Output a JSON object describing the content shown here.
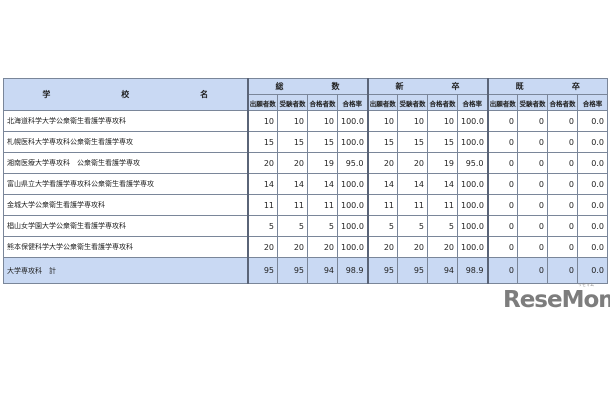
{
  "header": {
    "name_chars": [
      "学",
      "校",
      "名"
    ],
    "groups": [
      {
        "chars": [
          "総",
          "数"
        ]
      },
      {
        "chars": [
          "新",
          "卒"
        ]
      },
      {
        "chars": [
          "既",
          "卒"
        ]
      }
    ],
    "subcols": [
      "出願者数",
      "受験者数",
      "合格者数",
      "合格率"
    ]
  },
  "rows": [
    {
      "name": "北海道科学大学公衆衛生看護学専攻科",
      "v": [
        "10",
        "10",
        "10",
        "100.0",
        "10",
        "10",
        "10",
        "100.0",
        "0",
        "0",
        "0",
        "0.0"
      ]
    },
    {
      "name": "札幌医科大学専攻科公衆衛生看護学専攻",
      "v": [
        "15",
        "15",
        "15",
        "100.0",
        "15",
        "15",
        "15",
        "100.0",
        "0",
        "0",
        "0",
        "0.0"
      ]
    },
    {
      "name": "湘南医療大学専攻科　公衆衛生看護学専攻",
      "v": [
        "20",
        "20",
        "19",
        "95.0",
        "20",
        "20",
        "19",
        "95.0",
        "0",
        "0",
        "0",
        "0.0"
      ]
    },
    {
      "name": "富山県立大学看護学専攻科公衆衛生看護学専攻",
      "v": [
        "14",
        "14",
        "14",
        "100.0",
        "14",
        "14",
        "14",
        "100.0",
        "0",
        "0",
        "0",
        "0.0"
      ]
    },
    {
      "name": "金城大学公衆衛生看護学専攻科",
      "v": [
        "11",
        "11",
        "11",
        "100.0",
        "11",
        "11",
        "11",
        "100.0",
        "0",
        "0",
        "0",
        "0.0"
      ]
    },
    {
      "name": "椙山女学園大学公衆衛生看護学専攻科",
      "v": [
        "5",
        "5",
        "5",
        "100.0",
        "5",
        "5",
        "5",
        "100.0",
        "0",
        "0",
        "0",
        "0.0"
      ]
    },
    {
      "name": "熊本保健科学大学公衆衛生看護学専攻科",
      "v": [
        "20",
        "20",
        "20",
        "100.0",
        "20",
        "20",
        "20",
        "100.0",
        "0",
        "0",
        "0",
        "0.0"
      ]
    }
  ],
  "total": {
    "name": "大学専攻科　計",
    "v": [
      "95",
      "95",
      "94",
      "98.9",
      "95",
      "95",
      "94",
      "98.9",
      "0",
      "0",
      "0",
      "0.0"
    ]
  },
  "logo": {
    "text": "ReseMom",
    "ruby": "リセマム"
  }
}
